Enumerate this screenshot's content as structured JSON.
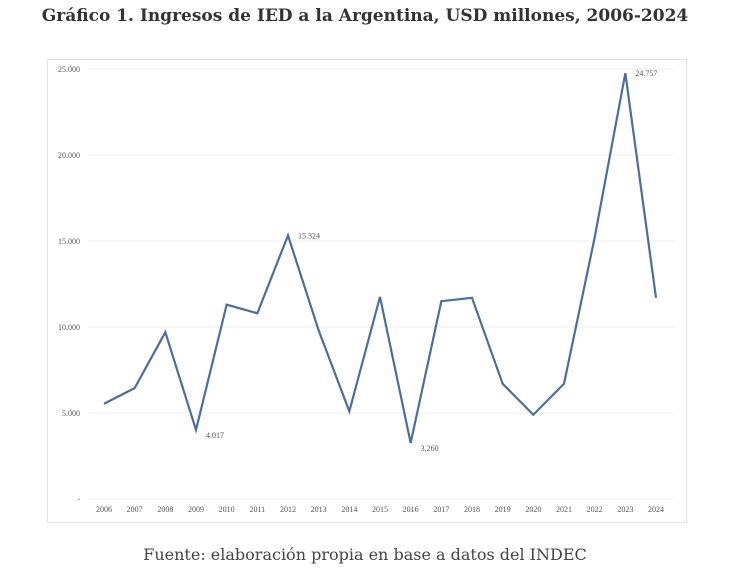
{
  "title": "Gráfico 1. Ingresos de IED a la Argentina, USD millones, 2006-2024",
  "source": "Fuente: elaboración propia en base a datos del INDEC",
  "chart_data": {
    "type": "line",
    "title": "Gráfico 1. Ingresos de IED a la Argentina, USD millones, 2006-2024",
    "xlabel": "",
    "ylabel": "",
    "ylim": [
      0,
      25000
    ],
    "yticks": [
      0,
      5000,
      10000,
      15000,
      20000,
      25000
    ],
    "ytick_labels": [
      "-",
      "5.000",
      "10.000",
      "15.000",
      "20.000",
      "25.000"
    ],
    "grid": true,
    "color": "#4a6f9e",
    "categories": [
      "2006",
      "2007",
      "2008",
      "2009",
      "2010",
      "2011",
      "2012",
      "2013",
      "2014",
      "2015",
      "2016",
      "2017",
      "2018",
      "2019",
      "2020",
      "2021",
      "2022",
      "2023",
      "2024"
    ],
    "values": [
      5537,
      6450,
      9700,
      4017,
      11300,
      10800,
      15324,
      9800,
      5100,
      11750,
      3260,
      11500,
      11700,
      6700,
      4900,
      6700,
      15200,
      24757,
      11700
    ],
    "annotations": [
      {
        "x": "2009",
        "label": "4.017"
      },
      {
        "x": "2012",
        "label": "15.324"
      },
      {
        "x": "2016",
        "label": "3.260"
      },
      {
        "x": "2023",
        "label": "24.757"
      }
    ]
  }
}
